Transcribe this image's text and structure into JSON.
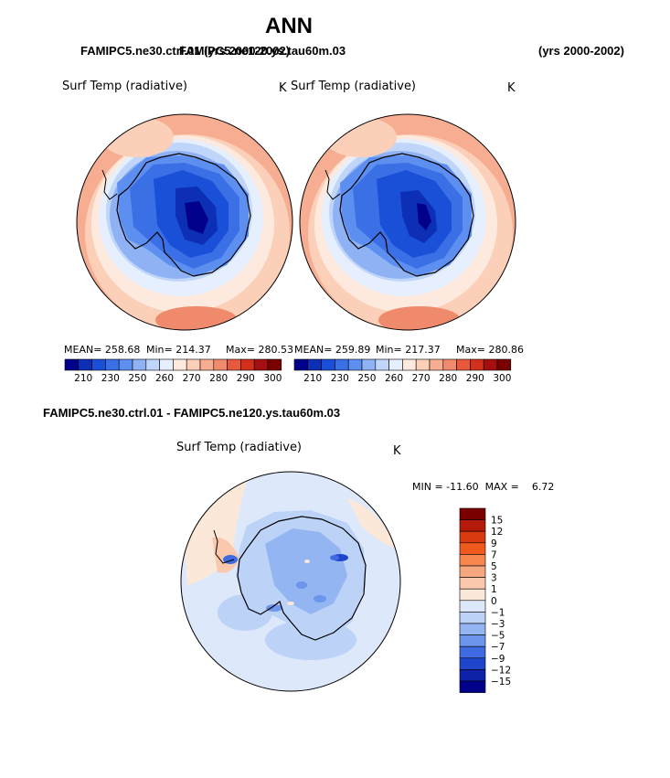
{
  "page": {
    "title": "ANN",
    "case_left": "FAMIPC5.ne30.ctrl.01 (yrs 2000-2002)",
    "case_right": "FAMIPC5.ne120.ys.tau60m.03",
    "years_right": "(yrs 2000-2002)",
    "diff_title": "FAMIPC5.ne30.ctrl.01 - FAMIPC5.ne120.ys.tau60m.03"
  },
  "chart_data": [
    {
      "type": "polar-contour-map",
      "name": "ctrl",
      "variable": "Surf Temp (radiative)",
      "units": "K",
      "stats": {
        "mean": "MEAN= 258.68",
        "min": "Min= 214.37",
        "max": "Max= 280.53"
      },
      "colorbar": {
        "levels": [
          "210",
          "230",
          "250",
          "260",
          "270",
          "280",
          "290",
          "300"
        ],
        "colors": [
          "#00008b",
          "#0d2fb5",
          "#1a4fd8",
          "#3a6fe6",
          "#5d8ff0",
          "#8fb2f5",
          "#c0d5fa",
          "#e6effd",
          "#fde9dd",
          "#fbcfb8",
          "#f6ad92",
          "#f08a6c",
          "#e8593c",
          "#d3301c",
          "#a50f0f",
          "#7a0000"
        ]
      }
    },
    {
      "type": "polar-contour-map",
      "name": "test",
      "variable": "Surf Temp (radiative)",
      "units": "K",
      "stats": {
        "mean": "MEAN= 259.89",
        "min": "Min= 217.37",
        "max": "Max= 280.86"
      },
      "colorbar": {
        "levels": [
          "210",
          "230",
          "250",
          "260",
          "270",
          "280",
          "290",
          "300"
        ],
        "colors": [
          "#00008b",
          "#0d2fb5",
          "#1a4fd8",
          "#3a6fe6",
          "#5d8ff0",
          "#8fb2f5",
          "#c0d5fa",
          "#e6effd",
          "#fde9dd",
          "#fbcfb8",
          "#f6ad92",
          "#f08a6c",
          "#e8593c",
          "#d3301c",
          "#a50f0f",
          "#7a0000"
        ]
      }
    },
    {
      "type": "polar-contour-map",
      "name": "difference",
      "variable": "Surf Temp (radiative)",
      "units": "K",
      "stats": {
        "minmax": "MIN = -11.60  MAX =    6.72"
      },
      "colorbar": {
        "levels": [
          "15",
          "12",
          "9",
          "7",
          "5",
          "3",
          "1",
          "0",
          "−1",
          "−3",
          "−5",
          "−7",
          "−9",
          "−12",
          "−15"
        ],
        "colors": [
          "#7a0000",
          "#b31a0a",
          "#d93a10",
          "#f05a1e",
          "#f5874f",
          "#f7a77f",
          "#fac9ad",
          "#fce8d9",
          "#dde9fb",
          "#bcd2f7",
          "#93b5f2",
          "#6c95ec",
          "#3f6ae2",
          "#1f45cc",
          "#0d22a6",
          "#00008b"
        ]
      }
    }
  ]
}
